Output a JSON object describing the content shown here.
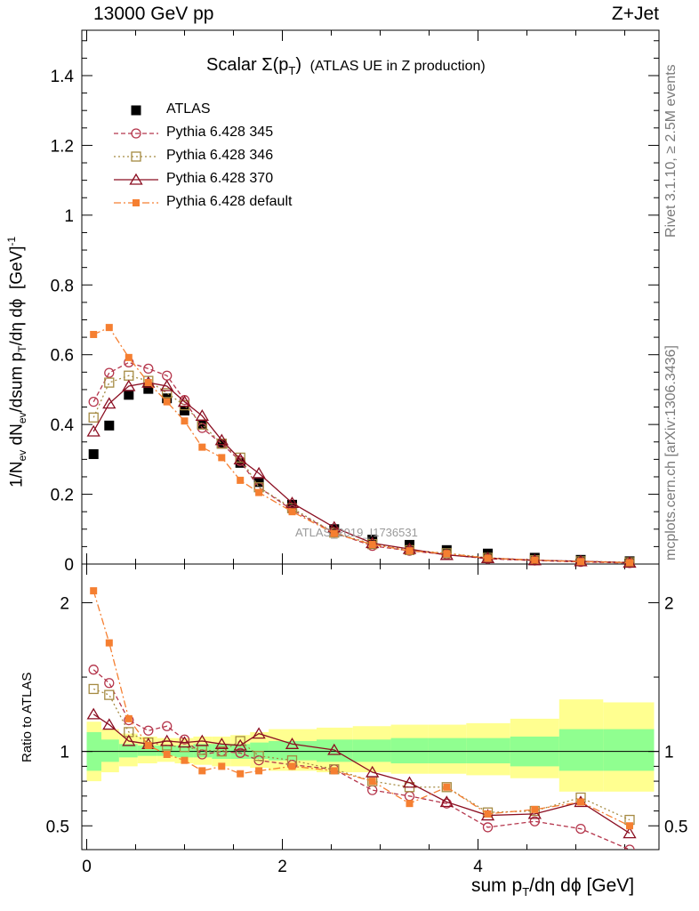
{
  "header": {
    "left": "13000 GeV pp",
    "right": "Z+Jet"
  },
  "side_labels": {
    "rivet": "Rivet 3.1.10, ≥ 2.5M events",
    "mcplots": "mcplots.cern.ch [arXiv:1306.3436]"
  },
  "watermark": "ATLAS_2019_I1736531",
  "chart_data": [
    {
      "type": "line",
      "panel": "main",
      "title": "Scalar Σ(pT) (ATLAS UE in Z production)",
      "title_parts": {
        "scalar": "Scalar ",
        "sigma": "Σ(p",
        "t_sub": "T",
        "close": ")",
        "rest": "(ATLAS UE in Z production)"
      },
      "xlabel": "sum pT/dη dϕ [GeV]",
      "ylabel": "1/Nev dNev/dsum pT/dη dϕ [GeV]-1",
      "xlim": [
        -0.05,
        5.85
      ],
      "ylim": [
        0,
        1.53
      ],
      "y_ticks": [
        "0",
        "0.2",
        "0.4",
        "0.6",
        "0.8",
        "1",
        "1.2",
        "1.4"
      ],
      "y_tick_values": [
        0,
        0.2,
        0.4,
        0.6,
        0.8,
        1.0,
        1.2,
        1.4
      ],
      "x": [
        0.07,
        0.23,
        0.43,
        0.63,
        0.82,
        1.0,
        1.18,
        1.38,
        1.57,
        1.76,
        2.1,
        2.53,
        2.92,
        3.3,
        3.68,
        4.1,
        4.58,
        5.05,
        5.55
      ],
      "series": [
        {
          "name": "ATLAS",
          "color": "#000000",
          "marker": "square-filled",
          "values": [
            0.315,
            0.397,
            0.485,
            0.502,
            0.475,
            0.44,
            0.4,
            0.345,
            0.29,
            0.235,
            0.17,
            0.1,
            0.07,
            0.055,
            0.04,
            0.03,
            0.018,
            0.012,
            0.008
          ]
        },
        {
          "name": "Pythia 6.428 345",
          "color": "#b5364c",
          "marker": "circle-open",
          "dash": "5,3",
          "values": [
            0.465,
            0.548,
            0.578,
            0.56,
            0.54,
            0.47,
            0.39,
            0.345,
            0.295,
            0.22,
            0.155,
            0.09,
            0.052,
            0.038,
            0.027,
            0.015,
            0.01,
            0.006,
            0.003
          ]
        },
        {
          "name": "Pythia 6.428 346",
          "color": "#a58a42",
          "marker": "square-open",
          "dash": "2,3",
          "values": [
            0.42,
            0.52,
            0.54,
            0.525,
            0.49,
            0.455,
            0.4,
            0.345,
            0.305,
            0.22,
            0.16,
            0.09,
            0.057,
            0.04,
            0.031,
            0.018,
            0.011,
            0.008,
            0.005
          ]
        },
        {
          "name": "Pythia 6.428 370",
          "color": "#8b0f22",
          "marker": "triangle-open",
          "dash": "",
          "values": [
            0.38,
            0.46,
            0.51,
            0.52,
            0.51,
            0.465,
            0.425,
            0.355,
            0.3,
            0.26,
            0.175,
            0.105,
            0.06,
            0.043,
            0.026,
            0.017,
            0.011,
            0.008,
            0.004
          ]
        },
        {
          "name": "Pythia 6.428 default",
          "color": "#f57f31",
          "marker": "square-filled-small",
          "dash": "8,3,2,3",
          "values": [
            0.658,
            0.678,
            0.592,
            0.52,
            0.465,
            0.41,
            0.335,
            0.305,
            0.24,
            0.205,
            0.15,
            0.088,
            0.056,
            0.038,
            0.03,
            0.017,
            0.011,
            0.007,
            0.004
          ]
        }
      ]
    },
    {
      "type": "line",
      "panel": "ratio",
      "ylabel": "Ratio to ATLAS",
      "xlim": [
        -0.05,
        5.85
      ],
      "ylim": [
        0.34,
        2.26
      ],
      "x_ticks": [
        "0",
        "2",
        "4"
      ],
      "x_tick_values": [
        0,
        2,
        4
      ],
      "y_ticks": [
        "0.5",
        "1",
        "2"
      ],
      "y_tick_values": [
        0.5,
        1,
        2
      ],
      "bin_edges": [
        0.0,
        0.15,
        0.33,
        0.52,
        0.72,
        0.9,
        1.09,
        1.28,
        1.47,
        1.67,
        1.86,
        2.35,
        2.72,
        3.11,
        3.49,
        3.88,
        4.33,
        4.83,
        5.28,
        5.8
      ],
      "band_green": [
        0.87,
        0.93,
        0.96,
        0.97,
        0.97,
        0.96,
        0.96,
        0.95,
        0.95,
        0.95,
        0.94,
        0.93,
        0.93,
        0.92,
        0.92,
        0.92,
        0.9,
        0.87,
        0.87
      ],
      "band_green_hi": [
        1.13,
        1.08,
        1.05,
        1.04,
        1.04,
        1.04,
        1.05,
        1.05,
        1.05,
        1.06,
        1.07,
        1.08,
        1.08,
        1.09,
        1.09,
        1.09,
        1.1,
        1.15,
        1.15
      ],
      "band_yellow": [
        0.8,
        0.86,
        0.9,
        0.92,
        0.93,
        0.92,
        0.91,
        0.9,
        0.9,
        0.89,
        0.87,
        0.86,
        0.86,
        0.85,
        0.85,
        0.84,
        0.82,
        0.73,
        0.73
      ],
      "band_yellow_hi": [
        1.2,
        1.15,
        1.12,
        1.1,
        1.09,
        1.09,
        1.1,
        1.1,
        1.11,
        1.13,
        1.15,
        1.16,
        1.17,
        1.18,
        1.18,
        1.19,
        1.22,
        1.35,
        1.33
      ],
      "reference": 1,
      "series": [
        {
          "name": "Pythia 6.428 345",
          "color": "#b5364c",
          "marker": "circle-open",
          "dash": "5,3",
          "values": [
            1.55,
            1.46,
            1.21,
            1.14,
            1.17,
            1.08,
            0.98,
            1.0,
            0.99,
            0.94,
            0.91,
            0.88,
            0.74,
            0.7,
            0.65,
            0.49,
            0.53,
            0.48,
            0.34
          ]
        },
        {
          "name": "Pythia 6.428 346",
          "color": "#a58a42",
          "marker": "square-open",
          "dash": "2,3",
          "values": [
            1.42,
            1.38,
            1.13,
            1.06,
            1.04,
            1.03,
            1.01,
            1.0,
            1.07,
            0.97,
            0.94,
            0.88,
            0.8,
            0.76,
            0.76,
            0.59,
            0.6,
            0.69,
            0.54
          ]
        },
        {
          "name": "Pythia 6.428 370",
          "color": "#8b0f22",
          "marker": "triangle-open",
          "dash": "",
          "values": [
            1.25,
            1.18,
            1.07,
            1.05,
            1.07,
            1.06,
            1.07,
            1.05,
            1.04,
            1.12,
            1.05,
            1.01,
            0.86,
            0.79,
            0.66,
            0.57,
            0.58,
            0.66,
            0.45
          ]
        },
        {
          "name": "Pythia 6.428 default",
          "color": "#f57f31",
          "marker": "square-filled-small",
          "dash": "8,3,2,3",
          "values": [
            2.08,
            1.73,
            1.22,
            1.04,
            0.98,
            0.94,
            0.87,
            0.9,
            0.85,
            0.87,
            0.9,
            0.87,
            0.8,
            0.65,
            0.76,
            0.58,
            0.61,
            0.66,
            0.5
          ]
        }
      ]
    }
  ]
}
